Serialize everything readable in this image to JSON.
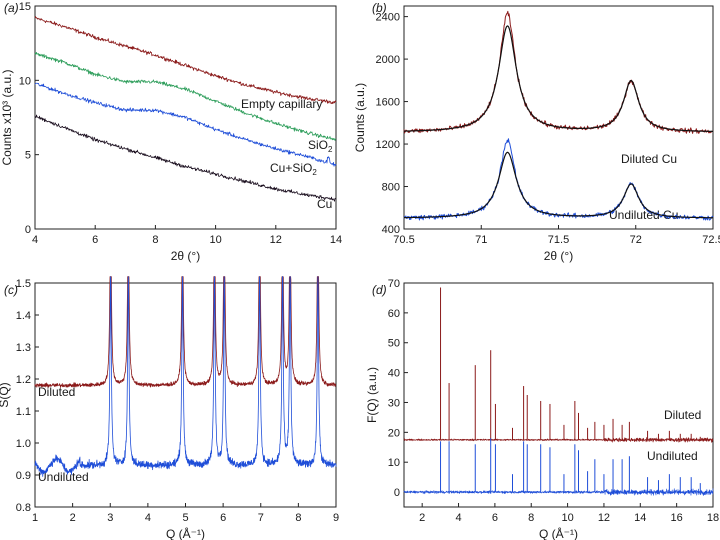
{
  "chart_data": [
    {
      "type": "line",
      "panel": "(a)",
      "xlabel": "2θ (°)",
      "ylabel": "Counts x10³ (a.u.)",
      "xlim": [
        4,
        14
      ],
      "ylim": [
        0,
        15
      ],
      "xticks": [
        4,
        6,
        8,
        10,
        12,
        14
      ],
      "yticks": [
        0,
        5,
        10,
        15
      ],
      "series": [
        {
          "name": "Empty capillary",
          "color": "#8b1a1a",
          "x": [
            4,
            5,
            6,
            7,
            8,
            9,
            10,
            11,
            12,
            13,
            14
          ],
          "y": [
            14.2,
            13.6,
            12.9,
            12.3,
            11.7,
            11.0,
            10.3,
            9.7,
            9.2,
            8.8,
            8.5
          ]
        },
        {
          "name": "SiO₂",
          "color": "#2e9e5b",
          "x": [
            4,
            5,
            6,
            7,
            8,
            9,
            10,
            11,
            12,
            13,
            14
          ],
          "y": [
            11.8,
            11.2,
            10.4,
            9.9,
            9.9,
            9.4,
            8.6,
            7.8,
            7.1,
            6.5,
            6.0
          ]
        },
        {
          "name": "Cu+SiO₂",
          "color": "#1f4ed8",
          "x": [
            4,
            5,
            6,
            7,
            8,
            9,
            10,
            11,
            12,
            13,
            14
          ],
          "y": [
            9.8,
            9.1,
            8.5,
            8.0,
            8.0,
            7.5,
            6.7,
            6.0,
            5.4,
            4.9,
            4.3
          ]
        },
        {
          "name": "Cu",
          "color": "#1c1020",
          "x": [
            4,
            5,
            6,
            7,
            8,
            9,
            10,
            11,
            12,
            13,
            14
          ],
          "y": [
            7.6,
            6.8,
            6.0,
            5.4,
            4.8,
            4.2,
            3.7,
            3.2,
            2.7,
            2.3,
            2.0
          ]
        }
      ]
    },
    {
      "type": "line",
      "panel": "(b)",
      "xlabel": "2θ (°)",
      "ylabel": "Counts (a.u.)",
      "xlim": [
        70.5,
        72.5
      ],
      "ylim": [
        400,
        2500
      ],
      "xticks": [
        70.5,
        71.0,
        71.5,
        72.0,
        72.5
      ],
      "yticks": [
        400,
        800,
        1200,
        1600,
        2000,
        2400
      ],
      "series": [
        {
          "name": "Diluted Cu",
          "color": "#8b1a1a",
          "fit_color": "#111111",
          "baseline": 1310,
          "peaks": [
            {
              "x": 71.17,
              "height": 1000,
              "width": 0.07
            },
            {
              "x": 71.97,
              "height": 480,
              "width": 0.06
            }
          ]
        },
        {
          "name": "Undiluted Cu",
          "color": "#1f4ed8",
          "fit_color": "#111111",
          "baseline": 500,
          "peaks": [
            {
              "x": 71.17,
              "height": 620,
              "width": 0.07
            },
            {
              "x": 71.97,
              "height": 320,
              "width": 0.06
            }
          ]
        }
      ]
    },
    {
      "type": "line",
      "panel": "(c)",
      "xlabel": "Q (Å⁻¹)",
      "ylabel": "S(Q)",
      "xlim": [
        1,
        9
      ],
      "ylim": [
        0.8,
        1.5
      ],
      "xticks": [
        1,
        2,
        3,
        4,
        5,
        6,
        7,
        8,
        9
      ],
      "yticks": [
        0.8,
        0.9,
        1.0,
        1.1,
        1.2,
        1.3,
        1.4,
        1.5
      ],
      "peak_positions": [
        3.01,
        3.48,
        4.92,
        5.77,
        6.03,
        6.97,
        7.58,
        7.78,
        8.52
      ],
      "series": [
        {
          "name": "Diluted",
          "color": "#8b1a1a",
          "baseline": 1.18
        },
        {
          "name": "Undiluted",
          "color": "#1f4ed8",
          "baseline": 0.93
        }
      ]
    },
    {
      "type": "bar",
      "panel": "(d)",
      "xlabel": "Q (Å⁻¹)",
      "ylabel": "F(Q) (a.u.)",
      "xlim": [
        1,
        18
      ],
      "ylim": [
        -5,
        70
      ],
      "xticks": [
        2,
        4,
        6,
        8,
        10,
        12,
        14,
        16,
        18
      ],
      "yticks": [
        0,
        10,
        20,
        30,
        40,
        50,
        60,
        70
      ],
      "x": [
        3.01,
        3.48,
        4.92,
        5.77,
        6.03,
        6.97,
        7.58,
        7.78,
        8.52,
        9.03,
        9.8,
        10.4,
        10.6,
        11.1,
        11.5,
        12.0,
        12.5,
        13.0,
        13.4,
        14.4,
        15.0,
        15.6,
        16.2,
        16.8,
        17.3
      ],
      "series": [
        {
          "name": "Diluted",
          "color": "#8b1a1a",
          "offset": 17.5,
          "values": [
            51,
            19,
            25,
            30,
            12,
            4,
            18,
            15,
            13,
            12,
            5,
            13,
            9,
            4,
            6,
            5,
            7,
            5,
            6,
            3,
            2,
            3,
            2,
            2,
            1
          ]
        },
        {
          "name": "Undiluted",
          "color": "#1f4ed8",
          "offset": 0,
          "values": [
            17,
            17,
            16,
            18,
            16,
            6,
            17,
            16,
            16,
            15,
            6,
            16,
            14,
            7,
            11,
            6,
            11,
            11,
            12,
            5,
            4,
            6,
            5,
            5,
            3
          ]
        }
      ]
    }
  ],
  "labels": {
    "a_empty": "Empty capillary",
    "a_sio2": "SiO",
    "a_cusio2": "Cu+SiO",
    "a_sub": "2",
    "a_cu": "Cu",
    "b_diluted": "Diluted Cu",
    "b_undiluted": "Undiluted Cu",
    "c_diluted": "Diluted",
    "c_undiluted": "Undiluted",
    "d_diluted": "Diluted",
    "d_undiluted": "Undiluted"
  }
}
